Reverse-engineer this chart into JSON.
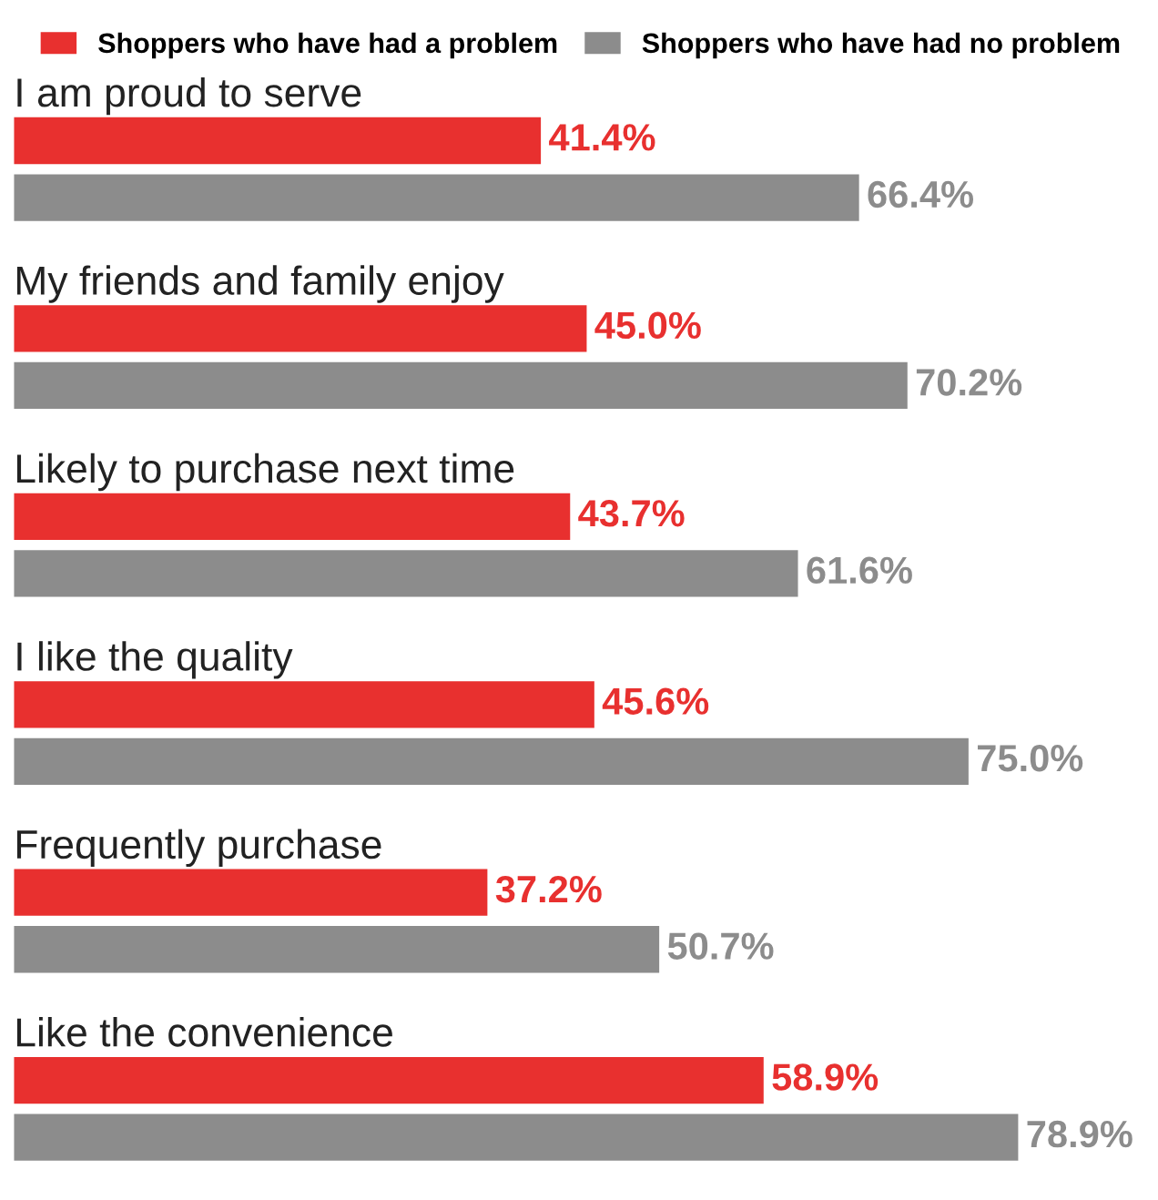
{
  "chart_data": {
    "type": "bar",
    "orientation": "horizontal",
    "categories": [
      "I am proud to serve",
      "My friends and family enjoy",
      "Likely to purchase next time",
      "I like the quality",
      "Frequently purchase",
      "Like the convenience"
    ],
    "series": [
      {
        "name": "Shoppers who have had a problem",
        "color": "#e8302f",
        "values": [
          41.4,
          45.0,
          43.7,
          45.6,
          37.2,
          58.9
        ],
        "value_labels": [
          "41.4%",
          "45.0%",
          "43.7%",
          "45.6%",
          "37.2%",
          "58.9%"
        ]
      },
      {
        "name": "Shoppers who have had no problem",
        "color": "#8c8c8c",
        "values": [
          66.4,
          70.2,
          61.6,
          75.0,
          50.7,
          78.9
        ],
        "value_labels": [
          "66.4%",
          "70.2%",
          "61.6%",
          "75.0%",
          "50.7%",
          "78.9%"
        ]
      }
    ],
    "legend": "top"
  }
}
